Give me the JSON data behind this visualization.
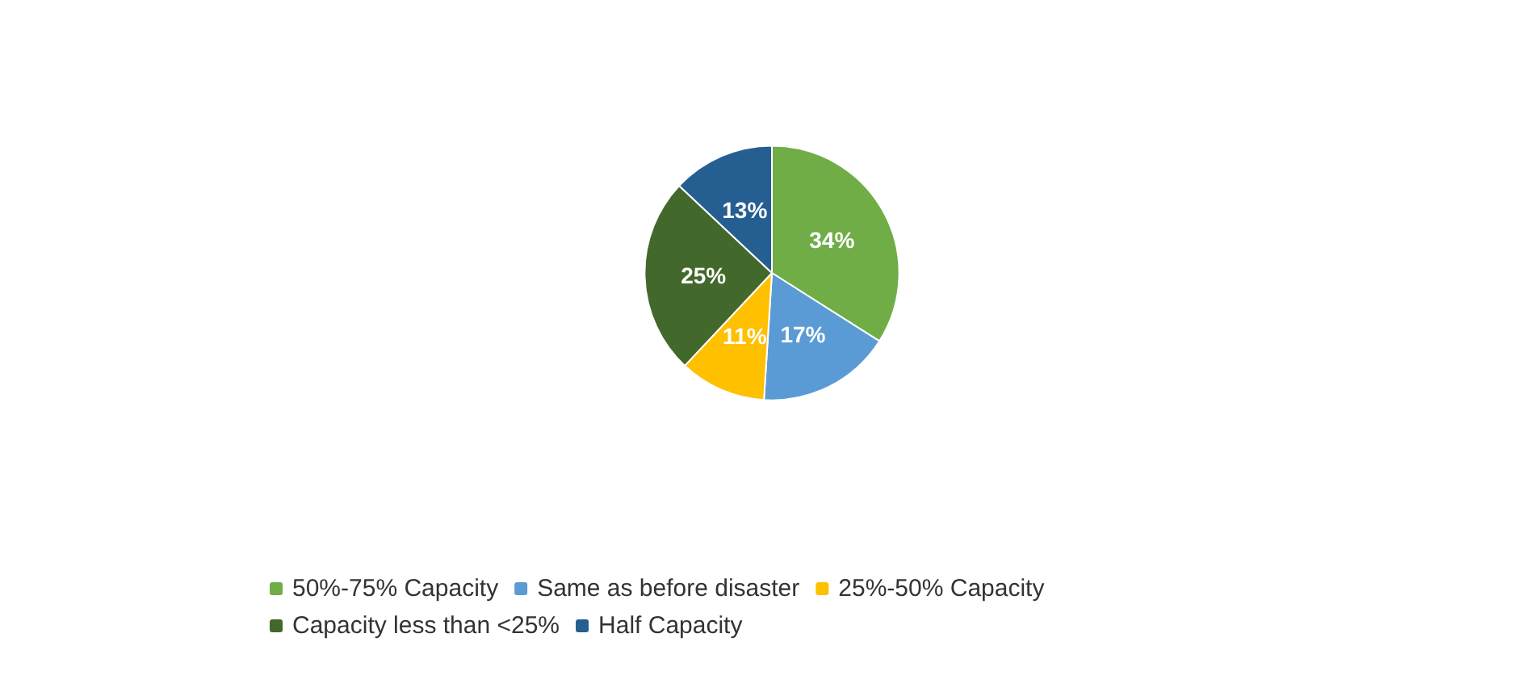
{
  "chart_data": {
    "type": "pie",
    "categories": [
      "50%-75% Capacity",
      "Same as before disaster",
      "25%-50% Capacity",
      "Capacity less than <25%",
      "Half Capacity"
    ],
    "values": [
      34,
      17,
      11,
      25,
      13
    ],
    "value_labels": [
      "34%",
      "17%",
      "11%",
      "25%",
      "13%"
    ],
    "colors": [
      "#70ad47",
      "#5b9bd5",
      "#ffc000",
      "#43682b",
      "#255e91"
    ],
    "legend": "bottom"
  }
}
